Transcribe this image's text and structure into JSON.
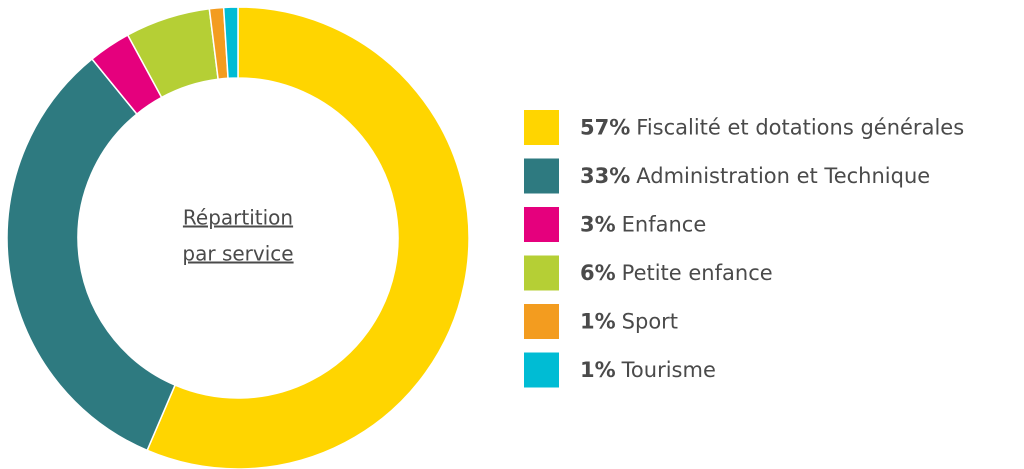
{
  "chart_data": {
    "type": "donut",
    "center_label": [
      "Répartition",
      "par service"
    ],
    "categories": [
      "Fiscalité et dotations générales",
      "Administration et Technique",
      "Enfance",
      "Petite enfance",
      "Sport",
      "Tourisme"
    ],
    "values": [
      57,
      33,
      3,
      6,
      1,
      1
    ],
    "value_labels": [
      "57%",
      "33%",
      "3%",
      "6%",
      "1%",
      "1%"
    ],
    "colors": [
      "#ffd500",
      "#2e7a80",
      "#e5007d",
      "#b5cf35",
      "#f39c1f",
      "#00bcd4"
    ],
    "legend": "right"
  }
}
